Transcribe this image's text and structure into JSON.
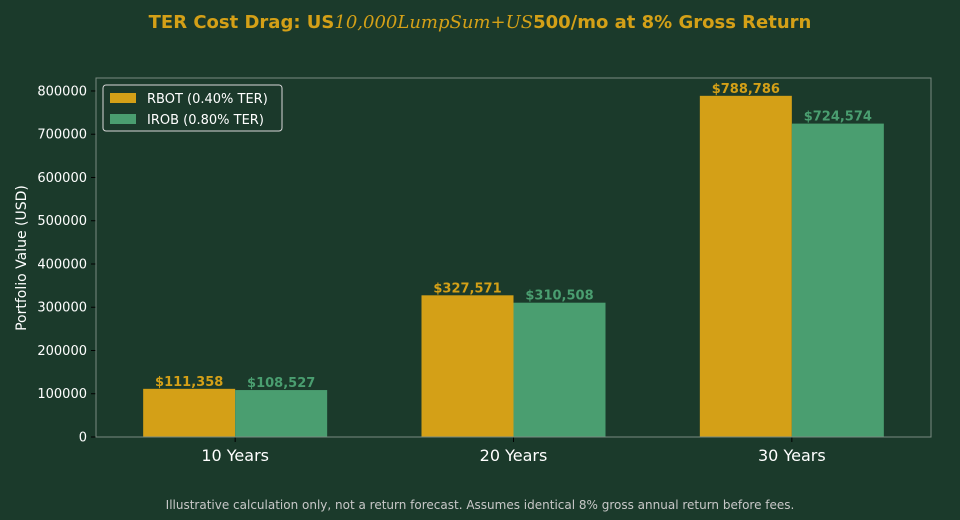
{
  "chart_data": {
    "type": "bar",
    "title_parts": {
      "lead": "TER Cost Drag: US",
      "math": "10,000LumpSum+US",
      "tail": "500/mo at 8% Gross Return"
    },
    "xlabel": "",
    "ylabel": "Portfolio Value (USD)",
    "categories": [
      "10 Years",
      "20 Years",
      "30 Years"
    ],
    "series": [
      {
        "name": "RBOT (0.40% TER)",
        "color": "#d4a017",
        "values": [
          111358,
          327571,
          788786
        ],
        "labels": [
          "$111,358",
          "$327,571",
          "$788,786"
        ]
      },
      {
        "name": "IROB (0.80% TER)",
        "color": "#4a9e70",
        "values": [
          108527,
          310508,
          724574
        ],
        "labels": [
          "$108,527",
          "$310,508",
          "$724,574"
        ]
      }
    ],
    "ylim": [
      0,
      830000
    ],
    "yticks": [
      0,
      100000,
      200000,
      300000,
      400000,
      500000,
      600000,
      700000,
      800000
    ],
    "ytick_labels": [
      "0",
      "100000",
      "200000",
      "300000",
      "400000",
      "500000",
      "600000",
      "700000",
      "800000"
    ],
    "grid": false,
    "legend_position": "top-left",
    "footnote": "Illustrative calculation only, not a return forecast. Assumes identical 8% gross annual return before fees."
  },
  "colors": {
    "background": "#1b3a2b",
    "axis": "#7a8a80",
    "text": "#ffffff",
    "title": "#d4a017",
    "footnote": "#c8c8c8"
  }
}
